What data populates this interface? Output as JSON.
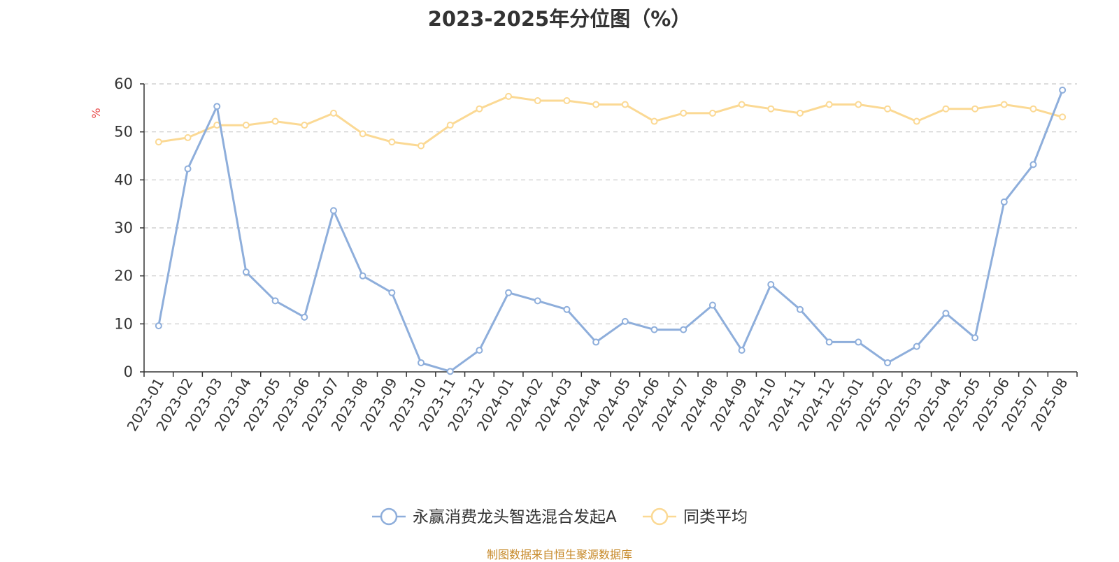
{
  "chart_data": {
    "type": "line",
    "title": "2023-2025年分位图（%）",
    "ylabel": "%",
    "xlabel": "",
    "ylim": [
      0,
      60
    ],
    "yticks": [
      0,
      10,
      20,
      30,
      40,
      50,
      60
    ],
    "grid": true,
    "legend_position": "bottom",
    "categories": [
      "2023-01",
      "2023-02",
      "2023-03",
      "2023-04",
      "2023-05",
      "2023-06",
      "2023-07",
      "2023-08",
      "2023-09",
      "2023-10",
      "2023-11",
      "2023-12",
      "2024-01",
      "2024-02",
      "2024-03",
      "2024-04",
      "2024-05",
      "2024-06",
      "2024-07",
      "2024-08",
      "2024-09",
      "2024-10",
      "2024-11",
      "2024-12",
      "2025-01",
      "2025-02",
      "2025-03",
      "2025-04",
      "2025-05",
      "2025-06",
      "2025-07",
      "2025-08"
    ],
    "series": [
      {
        "name": "永赢消费龙头智选混合发起A",
        "color": "#8eaedb",
        "values": [
          9.6,
          42.3,
          55.3,
          20.8,
          14.8,
          11.4,
          33.6,
          20.0,
          16.5,
          1.9,
          0.1,
          4.5,
          16.5,
          14.8,
          13.0,
          6.2,
          10.5,
          8.8,
          8.8,
          13.9,
          4.5,
          18.2,
          13.0,
          6.2,
          6.2,
          1.9,
          5.3,
          12.2,
          7.1,
          35.4,
          43.2,
          58.7
        ]
      },
      {
        "name": "同类平均",
        "color": "#fbd994",
        "values": [
          47.9,
          48.8,
          51.4,
          51.4,
          52.2,
          51.4,
          53.9,
          49.6,
          47.9,
          47.1,
          51.4,
          54.8,
          57.4,
          56.5,
          56.5,
          55.7,
          55.7,
          52.2,
          53.9,
          53.9,
          55.7,
          54.8,
          53.9,
          55.7,
          55.7,
          54.8,
          52.2,
          54.8,
          54.8,
          55.7,
          54.8,
          53.1
        ]
      }
    ]
  },
  "footer": {
    "text": "制图数据来自恒生聚源数据库",
    "color": "#c78a2a"
  },
  "colors": {
    "ylabel": "#e84a4a",
    "axis": "#333333",
    "grid": "#c8c8c8"
  }
}
